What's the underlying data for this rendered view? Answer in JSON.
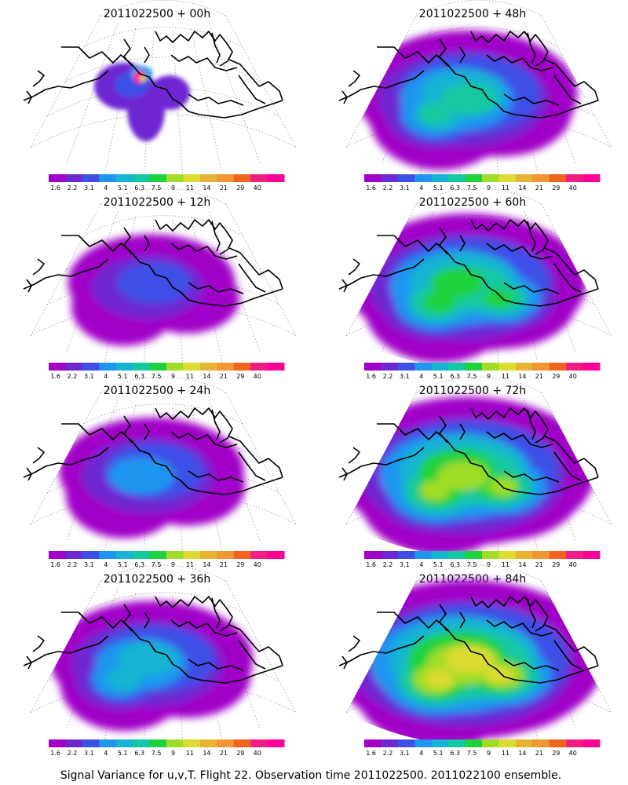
{
  "panels": [
    {
      "title": "2011022500 + 00h",
      "spread": 0
    },
    {
      "title": "2011022500 + 48h",
      "spread": 4
    },
    {
      "title": "2011022500 + 12h",
      "spread": 1
    },
    {
      "title": "2011022500 + 60h",
      "spread": 5
    },
    {
      "title": "2011022500 + 24h",
      "spread": 2
    },
    {
      "title": "2011022500 + 72h",
      "spread": 6
    },
    {
      "title": "2011022500 + 36h",
      "spread": 3
    },
    {
      "title": "2011022500 + 84h",
      "spread": 7
    }
  ],
  "legend": {
    "labels": [
      "1.6",
      "2.2",
      "3.1",
      "4",
      "5.1",
      "6.3",
      "7.5",
      "9",
      "11",
      "14",
      "21",
      "29",
      "40"
    ],
    "colors": [
      "#a000c8",
      "#6e28d2",
      "#3c50e6",
      "#1e96f0",
      "#14b4d2",
      "#14c8a0",
      "#1ed23c",
      "#a0dc28",
      "#dcdc32",
      "#e6b432",
      "#f09632",
      "#f0641e",
      "#f01e82",
      "#ff0096"
    ]
  },
  "caption": "Signal Variance for u,v,T. Flight 22. Observation time 2011022500. 2011022100 ensemble."
}
